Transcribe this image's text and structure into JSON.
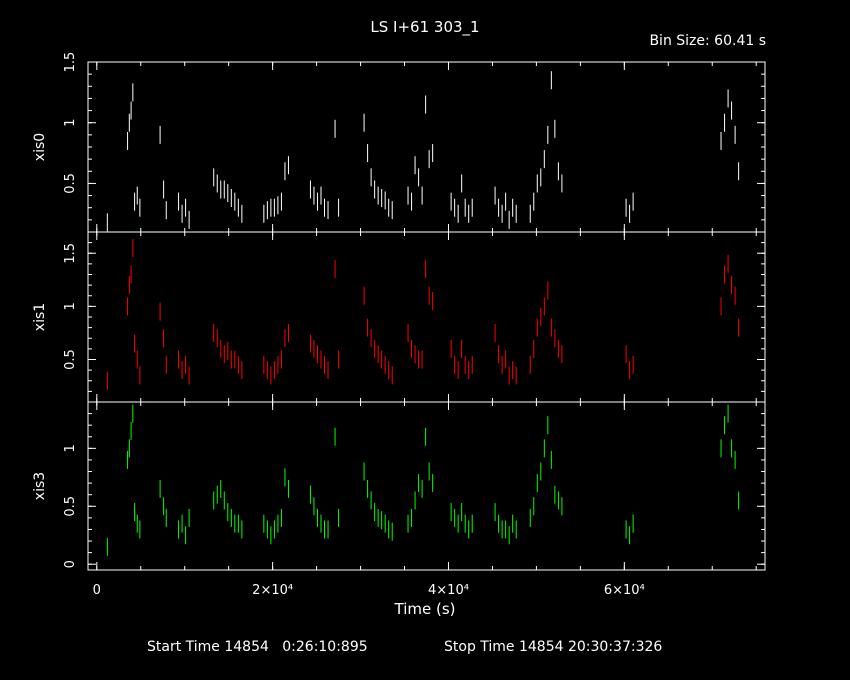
{
  "chart_data": {
    "type": "scatter",
    "title": "LS I+61 303_1",
    "bin_size_label": "Bin Size:  60.41  s",
    "xlabel": "Time (s)",
    "xlim": [
      -1000,
      76000
    ],
    "x_ticks": [
      {
        "value": 0,
        "label": "0"
      },
      {
        "value": 20000,
        "label": "2×10⁴"
      },
      {
        "value": 40000,
        "label": "4×10⁴"
      },
      {
        "value": 60000,
        "label": "6×10⁴"
      }
    ],
    "footer": {
      "start": "Start Time 14854   0:26:10:895",
      "stop": "Stop Time 14854 20:30:37:326"
    },
    "panels": [
      {
        "name": "xis0",
        "ylabel": "xis0",
        "color": "#ffffff",
        "ylim": [
          0.1,
          1.5
        ],
        "y_ticks": [
          {
            "value": 0.5,
            "label": "0.5"
          },
          {
            "value": 1,
            "label": "1"
          },
          {
            "value": 1.5,
            "label": "1.5"
          }
        ],
        "points": [
          [
            1200,
            0.18
          ],
          [
            3500,
            0.85
          ],
          [
            3700,
            1.0
          ],
          [
            3900,
            1.1
          ],
          [
            4100,
            1.25
          ],
          [
            4300,
            0.35
          ],
          [
            4600,
            0.4
          ],
          [
            4900,
            0.3
          ],
          [
            7200,
            0.9
          ],
          [
            7600,
            0.45
          ],
          [
            7900,
            0.28
          ],
          [
            9300,
            0.35
          ],
          [
            9700,
            0.25
          ],
          [
            10100,
            0.3
          ],
          [
            10500,
            0.2
          ],
          [
            13300,
            0.55
          ],
          [
            13700,
            0.5
          ],
          [
            14100,
            0.45
          ],
          [
            14500,
            0.45
          ],
          [
            14900,
            0.42
          ],
          [
            15300,
            0.38
          ],
          [
            15700,
            0.35
          ],
          [
            16100,
            0.3
          ],
          [
            16500,
            0.25
          ],
          [
            19000,
            0.25
          ],
          [
            19400,
            0.28
          ],
          [
            19800,
            0.3
          ],
          [
            20200,
            0.3
          ],
          [
            20600,
            0.32
          ],
          [
            21000,
            0.35
          ],
          [
            21400,
            0.6
          ],
          [
            21800,
            0.65
          ],
          [
            24300,
            0.45
          ],
          [
            24700,
            0.4
          ],
          [
            25100,
            0.35
          ],
          [
            25500,
            0.4
          ],
          [
            25900,
            0.3
          ],
          [
            26300,
            0.28
          ],
          [
            27100,
            0.95
          ],
          [
            27500,
            0.3
          ],
          [
            30400,
            1.0
          ],
          [
            30800,
            0.75
          ],
          [
            31200,
            0.55
          ],
          [
            31600,
            0.45
          ],
          [
            32000,
            0.4
          ],
          [
            32400,
            0.38
          ],
          [
            32800,
            0.36
          ],
          [
            33200,
            0.3
          ],
          [
            33600,
            0.28
          ],
          [
            35400,
            0.4
          ],
          [
            35800,
            0.35
          ],
          [
            36200,
            0.65
          ],
          [
            36600,
            0.55
          ],
          [
            37000,
            0.4
          ],
          [
            37400,
            1.15
          ],
          [
            37800,
            0.7
          ],
          [
            38200,
            0.75
          ],
          [
            40300,
            0.35
          ],
          [
            40700,
            0.3
          ],
          [
            41100,
            0.25
          ],
          [
            41500,
            0.5
          ],
          [
            41900,
            0.3
          ],
          [
            42300,
            0.25
          ],
          [
            42700,
            0.3
          ],
          [
            45300,
            0.4
          ],
          [
            45700,
            0.3
          ],
          [
            46100,
            0.25
          ],
          [
            46500,
            0.35
          ],
          [
            46900,
            0.2
          ],
          [
            47300,
            0.3
          ],
          [
            47700,
            0.25
          ],
          [
            49300,
            0.25
          ],
          [
            49700,
            0.35
          ],
          [
            50100,
            0.5
          ],
          [
            50500,
            0.55
          ],
          [
            50900,
            0.7
          ],
          [
            51300,
            0.9
          ],
          [
            51700,
            1.35
          ],
          [
            52100,
            0.95
          ],
          [
            52500,
            0.6
          ],
          [
            52900,
            0.5
          ],
          [
            60200,
            0.3
          ],
          [
            60600,
            0.25
          ],
          [
            61000,
            0.35
          ],
          [
            71000,
            0.85
          ],
          [
            71400,
            1.0
          ],
          [
            71800,
            1.2
          ],
          [
            72200,
            1.1
          ],
          [
            72600,
            0.9
          ],
          [
            73000,
            0.6
          ]
        ]
      },
      {
        "name": "xis1",
        "ylabel": "xis1",
        "color": "#ff0000",
        "ylim": [
          0.1,
          1.7
        ],
        "y_ticks": [
          {
            "value": 0.5,
            "label": "0.5"
          },
          {
            "value": 1,
            "label": "1"
          },
          {
            "value": 1.5,
            "label": "1.5"
          }
        ],
        "points": [
          [
            1200,
            0.3
          ],
          [
            3500,
            1.0
          ],
          [
            3700,
            1.2
          ],
          [
            3900,
            1.3
          ],
          [
            4100,
            1.55
          ],
          [
            4300,
            0.65
          ],
          [
            4600,
            0.5
          ],
          [
            4900,
            0.35
          ],
          [
            7200,
            0.95
          ],
          [
            7600,
            0.7
          ],
          [
            7900,
            0.45
          ],
          [
            9300,
            0.5
          ],
          [
            9700,
            0.4
          ],
          [
            10100,
            0.45
          ],
          [
            10500,
            0.35
          ],
          [
            13300,
            0.75
          ],
          [
            13700,
            0.7
          ],
          [
            14100,
            0.6
          ],
          [
            14500,
            0.55
          ],
          [
            14900,
            0.58
          ],
          [
            15300,
            0.5
          ],
          [
            15700,
            0.5
          ],
          [
            16100,
            0.45
          ],
          [
            16500,
            0.4
          ],
          [
            19000,
            0.45
          ],
          [
            19400,
            0.4
          ],
          [
            19800,
            0.35
          ],
          [
            20200,
            0.4
          ],
          [
            20600,
            0.45
          ],
          [
            21000,
            0.5
          ],
          [
            21400,
            0.7
          ],
          [
            21800,
            0.75
          ],
          [
            24300,
            0.65
          ],
          [
            24700,
            0.6
          ],
          [
            25100,
            0.55
          ],
          [
            25500,
            0.5
          ],
          [
            25900,
            0.45
          ],
          [
            26300,
            0.4
          ],
          [
            27100,
            1.35
          ],
          [
            27500,
            0.5
          ],
          [
            30400,
            1.1
          ],
          [
            30800,
            0.8
          ],
          [
            31200,
            0.7
          ],
          [
            31600,
            0.6
          ],
          [
            32000,
            0.55
          ],
          [
            32400,
            0.5
          ],
          [
            32800,
            0.45
          ],
          [
            33200,
            0.4
          ],
          [
            33600,
            0.35
          ],
          [
            35400,
            0.75
          ],
          [
            35800,
            0.6
          ],
          [
            36200,
            0.55
          ],
          [
            36600,
            0.5
          ],
          [
            37000,
            0.5
          ],
          [
            37400,
            1.35
          ],
          [
            37800,
            1.1
          ],
          [
            38200,
            1.05
          ],
          [
            40300,
            0.6
          ],
          [
            40700,
            0.45
          ],
          [
            41100,
            0.4
          ],
          [
            41500,
            0.6
          ],
          [
            41900,
            0.45
          ],
          [
            42300,
            0.4
          ],
          [
            42700,
            0.45
          ],
          [
            45300,
            0.75
          ],
          [
            45700,
            0.55
          ],
          [
            46100,
            0.45
          ],
          [
            46500,
            0.5
          ],
          [
            46900,
            0.35
          ],
          [
            47300,
            0.4
          ],
          [
            47700,
            0.35
          ],
          [
            49300,
            0.45
          ],
          [
            49700,
            0.6
          ],
          [
            50100,
            0.8
          ],
          [
            50500,
            0.9
          ],
          [
            50900,
            1.0
          ],
          [
            51300,
            1.15
          ],
          [
            51700,
            0.8
          ],
          [
            52100,
            0.7
          ],
          [
            52500,
            0.6
          ],
          [
            52900,
            0.55
          ],
          [
            60200,
            0.55
          ],
          [
            60600,
            0.4
          ],
          [
            61000,
            0.45
          ],
          [
            71000,
            1.0
          ],
          [
            71400,
            1.3
          ],
          [
            71800,
            1.4
          ],
          [
            72200,
            1.2
          ],
          [
            72600,
            1.1
          ],
          [
            73000,
            0.8
          ]
        ]
      },
      {
        "name": "xis3",
        "ylabel": "xis3",
        "color": "#00ff00",
        "ylim": [
          -0.05,
          1.4
        ],
        "y_ticks": [
          {
            "value": 0,
            "label": "0"
          },
          {
            "value": 0.5,
            "label": "0.5"
          },
          {
            "value": 1,
            "label": "1"
          }
        ],
        "points": [
          [
            1200,
            0.15
          ],
          [
            3500,
            0.9
          ],
          [
            3700,
            1.0
          ],
          [
            3900,
            1.15
          ],
          [
            4100,
            1.3
          ],
          [
            4300,
            0.45
          ],
          [
            4600,
            0.35
          ],
          [
            4900,
            0.3
          ],
          [
            7200,
            0.65
          ],
          [
            7600,
            0.5
          ],
          [
            7900,
            0.4
          ],
          [
            9300,
            0.3
          ],
          [
            9700,
            0.35
          ],
          [
            10100,
            0.25
          ],
          [
            10500,
            0.4
          ],
          [
            13300,
            0.55
          ],
          [
            13700,
            0.6
          ],
          [
            14100,
            0.65
          ],
          [
            14500,
            0.55
          ],
          [
            14900,
            0.45
          ],
          [
            15300,
            0.4
          ],
          [
            15700,
            0.35
          ],
          [
            16100,
            0.35
          ],
          [
            16500,
            0.3
          ],
          [
            19000,
            0.35
          ],
          [
            19400,
            0.3
          ],
          [
            19800,
            0.25
          ],
          [
            20200,
            0.3
          ],
          [
            20600,
            0.35
          ],
          [
            21000,
            0.4
          ],
          [
            21400,
            0.75
          ],
          [
            21800,
            0.65
          ],
          [
            24300,
            0.6
          ],
          [
            24700,
            0.5
          ],
          [
            25100,
            0.4
          ],
          [
            25500,
            0.35
          ],
          [
            25900,
            0.3
          ],
          [
            26300,
            0.3
          ],
          [
            27100,
            1.1
          ],
          [
            27500,
            0.4
          ],
          [
            30400,
            0.8
          ],
          [
            30800,
            0.65
          ],
          [
            31200,
            0.55
          ],
          [
            31600,
            0.45
          ],
          [
            32000,
            0.4
          ],
          [
            32400,
            0.38
          ],
          [
            32800,
            0.35
          ],
          [
            33200,
            0.3
          ],
          [
            33600,
            0.28
          ],
          [
            35400,
            0.35
          ],
          [
            35800,
            0.4
          ],
          [
            36200,
            0.55
          ],
          [
            36600,
            0.7
          ],
          [
            37000,
            0.65
          ],
          [
            37400,
            1.1
          ],
          [
            37800,
            0.8
          ],
          [
            38200,
            0.7
          ],
          [
            40300,
            0.45
          ],
          [
            40700,
            0.4
          ],
          [
            41100,
            0.35
          ],
          [
            41500,
            0.45
          ],
          [
            41900,
            0.35
          ],
          [
            42300,
            0.3
          ],
          [
            42700,
            0.35
          ],
          [
            45300,
            0.45
          ],
          [
            45700,
            0.35
          ],
          [
            46100,
            0.3
          ],
          [
            46500,
            0.3
          ],
          [
            46900,
            0.25
          ],
          [
            47300,
            0.35
          ],
          [
            47700,
            0.3
          ],
          [
            49300,
            0.4
          ],
          [
            49700,
            0.5
          ],
          [
            50100,
            0.7
          ],
          [
            50500,
            0.8
          ],
          [
            50900,
            1.0
          ],
          [
            51300,
            1.2
          ],
          [
            51700,
            0.9
          ],
          [
            52100,
            0.6
          ],
          [
            52500,
            0.55
          ],
          [
            52900,
            0.5
          ],
          [
            60200,
            0.3
          ],
          [
            60600,
            0.25
          ],
          [
            61000,
            0.35
          ],
          [
            71000,
            1.0
          ],
          [
            71400,
            1.2
          ],
          [
            71800,
            1.3
          ],
          [
            72200,
            1.0
          ],
          [
            72600,
            0.9
          ],
          [
            73000,
            0.55
          ]
        ]
      }
    ]
  }
}
